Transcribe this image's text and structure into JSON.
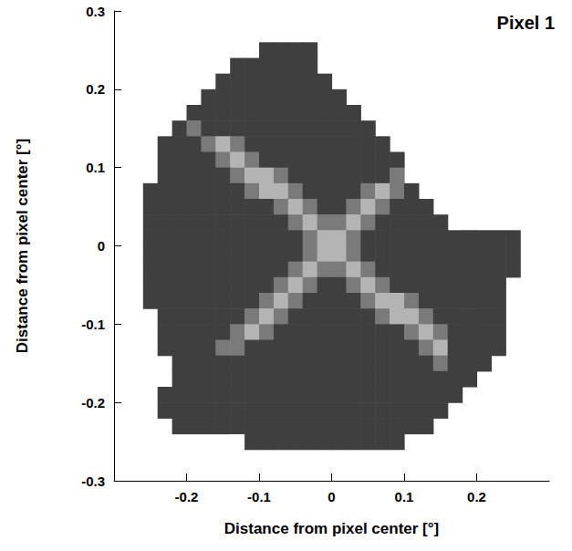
{
  "chart_data": {
    "type": "heatmap",
    "title": "Pixel 1",
    "x_label": "Distance from pixel center [°]",
    "y_label": "Distance from pixel center [°]",
    "xlim": [
      -0.3,
      0.3
    ],
    "ylim": [
      -0.3,
      0.3
    ],
    "xticks": [
      -0.2,
      -0.1,
      0,
      0.1,
      0.2
    ],
    "yticks": [
      -0.3,
      -0.2,
      -0.1,
      0,
      0.1,
      0.2,
      0.3
    ],
    "grid": false,
    "colors": [
      "#3f3f3f",
      "#7a7a7a",
      "#b4b4b4"
    ],
    "x_edges": [
      -0.3,
      -0.28,
      -0.26,
      -0.24,
      -0.22,
      -0.2,
      -0.18,
      -0.16,
      -0.14,
      -0.12,
      -0.1,
      -0.08,
      -0.06,
      -0.04,
      -0.02,
      0,
      0.02,
      0.04,
      0.06,
      0.08,
      0.1,
      0.12,
      0.14,
      0.16,
      0.18,
      0.2,
      0.22,
      0.24,
      0.26,
      0.28,
      0.3
    ],
    "y_edges": [
      0.3,
      0.28,
      0.26,
      0.24,
      0.22,
      0.2,
      0.18,
      0.16,
      0.14,
      0.12,
      0.1,
      0.08,
      0.06,
      0.04,
      0.02,
      0,
      -0.02,
      -0.04,
      -0.06,
      -0.08,
      -0.1,
      -0.12,
      -0.14,
      -0.16,
      -0.18,
      -0.2,
      -0.22,
      -0.24,
      -0.26,
      -0.28,
      -0.3
    ],
    "cells": [
      [
        0,
        0,
        0,
        0,
        0,
        0,
        0,
        0,
        0,
        0,
        0,
        0,
        0,
        0,
        0,
        0,
        0,
        0,
        0,
        0,
        0,
        0,
        0,
        0,
        0,
        0,
        0,
        0,
        0,
        0
      ],
      [
        0,
        0,
        0,
        0,
        0,
        0,
        0,
        0,
        0,
        0,
        0,
        0,
        0,
        0,
        0,
        0,
        0,
        0,
        0,
        0,
        0,
        0,
        0,
        0,
        0,
        0,
        0,
        0,
        0,
        0
      ],
      [
        0,
        0,
        0,
        0,
        0,
        0,
        0,
        0,
        0,
        0,
        1,
        1,
        1,
        1,
        0,
        0,
        0,
        0,
        0,
        0,
        0,
        0,
        0,
        0,
        0,
        0,
        0,
        0,
        0,
        0
      ],
      [
        0,
        0,
        0,
        0,
        0,
        0,
        0,
        0,
        1,
        1,
        1,
        1,
        1,
        1,
        0,
        0,
        0,
        0,
        0,
        0,
        0,
        0,
        0,
        0,
        0,
        0,
        0,
        0,
        0,
        0
      ],
      [
        0,
        0,
        0,
        0,
        0,
        0,
        0,
        1,
        1,
        1,
        1,
        1,
        1,
        1,
        1,
        0,
        0,
        0,
        0,
        0,
        0,
        0,
        0,
        0,
        0,
        0,
        0,
        0,
        0,
        0
      ],
      [
        0,
        0,
        0,
        0,
        0,
        0,
        1,
        1,
        1,
        1,
        1,
        1,
        1,
        1,
        1,
        1,
        0,
        0,
        0,
        0,
        0,
        0,
        0,
        0,
        0,
        0,
        0,
        0,
        0,
        0
      ],
      [
        0,
        0,
        0,
        0,
        0,
        1,
        1,
        1,
        1,
        1,
        1,
        1,
        1,
        1,
        1,
        1,
        1,
        0,
        0,
        0,
        0,
        0,
        0,
        0,
        0,
        0,
        0,
        0,
        0,
        0
      ],
      [
        0,
        0,
        0,
        0,
        1,
        2,
        1,
        1,
        1,
        1,
        1,
        1,
        1,
        1,
        1,
        1,
        1,
        1,
        0,
        0,
        0,
        0,
        0,
        0,
        0,
        0,
        0,
        0,
        0,
        0
      ],
      [
        0,
        0,
        0,
        1,
        1,
        1,
        2,
        3,
        2,
        1,
        1,
        1,
        1,
        1,
        1,
        1,
        1,
        1,
        1,
        0,
        0,
        0,
        0,
        0,
        0,
        0,
        0,
        0,
        0,
        0
      ],
      [
        0,
        0,
        0,
        1,
        1,
        1,
        1,
        2,
        3,
        2,
        1,
        1,
        1,
        1,
        1,
        1,
        1,
        1,
        1,
        1,
        0,
        0,
        0,
        0,
        0,
        0,
        0,
        0,
        0,
        0
      ],
      [
        0,
        0,
        0,
        1,
        1,
        1,
        1,
        1,
        2,
        3,
        3,
        2,
        1,
        1,
        1,
        1,
        1,
        1,
        1,
        2,
        0,
        0,
        0,
        0,
        0,
        0,
        0,
        0,
        0,
        0
      ],
      [
        0,
        0,
        1,
        1,
        1,
        1,
        1,
        1,
        1,
        2,
        3,
        3,
        2,
        1,
        1,
        1,
        1,
        2,
        3,
        2,
        1,
        0,
        0,
        0,
        0,
        0,
        0,
        0,
        0,
        0
      ],
      [
        0,
        0,
        1,
        1,
        1,
        1,
        1,
        1,
        1,
        1,
        1,
        2,
        3,
        2,
        1,
        1,
        2,
        3,
        2,
        1,
        1,
        1,
        0,
        0,
        0,
        0,
        0,
        0,
        0,
        0
      ],
      [
        0,
        0,
        1,
        1,
        1,
        1,
        1,
        1,
        1,
        1,
        1,
        1,
        2,
        3,
        2,
        2,
        3,
        2,
        1,
        1,
        1,
        1,
        1,
        0,
        0,
        0,
        0,
        0,
        0,
        0
      ],
      [
        0,
        0,
        1,
        1,
        1,
        1,
        1,
        1,
        1,
        1,
        1,
        1,
        1,
        2,
        3,
        3,
        2,
        1,
        1,
        1,
        1,
        1,
        1,
        1,
        1,
        1,
        1,
        1,
        0,
        0
      ],
      [
        0,
        0,
        1,
        1,
        1,
        1,
        1,
        1,
        1,
        1,
        1,
        1,
        1,
        2,
        3,
        3,
        2,
        1,
        1,
        1,
        1,
        1,
        1,
        1,
        1,
        1,
        1,
        1,
        0,
        0
      ],
      [
        0,
        0,
        1,
        1,
        1,
        1,
        1,
        1,
        1,
        1,
        1,
        1,
        2,
        3,
        2,
        2,
        3,
        2,
        1,
        1,
        1,
        1,
        1,
        1,
        1,
        1,
        1,
        1,
        0,
        0
      ],
      [
        0,
        0,
        1,
        1,
        1,
        1,
        1,
        1,
        1,
        1,
        1,
        2,
        3,
        2,
        1,
        1,
        2,
        3,
        2,
        1,
        1,
        1,
        1,
        1,
        1,
        1,
        1,
        0,
        0,
        0
      ],
      [
        0,
        0,
        1,
        1,
        1,
        1,
        1,
        1,
        1,
        1,
        2,
        3,
        2,
        1,
        1,
        1,
        1,
        2,
        3,
        3,
        2,
        1,
        1,
        1,
        1,
        1,
        1,
        0,
        0,
        0
      ],
      [
        0,
        0,
        0,
        1,
        1,
        1,
        1,
        1,
        1,
        2,
        3,
        2,
        1,
        1,
        1,
        1,
        1,
        1,
        2,
        3,
        3,
        2,
        1,
        1,
        1,
        1,
        1,
        0,
        0,
        0
      ],
      [
        0,
        0,
        0,
        1,
        1,
        1,
        1,
        1,
        2,
        3,
        2,
        1,
        1,
        1,
        1,
        1,
        1,
        1,
        1,
        1,
        2,
        3,
        2,
        1,
        1,
        1,
        1,
        0,
        0,
        0
      ],
      [
        0,
        0,
        0,
        1,
        1,
        1,
        1,
        2,
        2,
        1,
        1,
        1,
        1,
        1,
        1,
        1,
        1,
        1,
        1,
        1,
        1,
        2,
        3,
        1,
        1,
        1,
        1,
        0,
        0,
        0
      ],
      [
        0,
        0,
        0,
        0,
        1,
        1,
        1,
        1,
        1,
        1,
        1,
        1,
        1,
        1,
        1,
        1,
        1,
        1,
        1,
        1,
        1,
        1,
        2,
        1,
        1,
        1,
        0,
        0,
        0,
        0
      ],
      [
        0,
        0,
        0,
        0,
        1,
        1,
        1,
        1,
        1,
        1,
        1,
        1,
        1,
        1,
        1,
        1,
        1,
        1,
        1,
        1,
        1,
        1,
        1,
        1,
        1,
        0,
        0,
        0,
        0,
        0
      ],
      [
        0,
        0,
        0,
        1,
        1,
        1,
        1,
        1,
        1,
        1,
        1,
        1,
        1,
        1,
        1,
        1,
        1,
        1,
        1,
        1,
        1,
        1,
        1,
        1,
        0,
        0,
        0,
        0,
        0,
        0
      ],
      [
        0,
        0,
        0,
        1,
        1,
        1,
        1,
        1,
        1,
        1,
        1,
        1,
        1,
        1,
        1,
        1,
        1,
        1,
        1,
        1,
        1,
        1,
        1,
        0,
        0,
        0,
        0,
        0,
        0,
        0
      ],
      [
        0,
        0,
        0,
        0,
        1,
        1,
        1,
        1,
        1,
        1,
        1,
        1,
        1,
        1,
        1,
        1,
        1,
        1,
        1,
        1,
        1,
        1,
        0,
        0,
        0,
        0,
        0,
        0,
        0,
        0
      ],
      [
        0,
        0,
        0,
        0,
        0,
        0,
        0,
        0,
        0,
        1,
        1,
        1,
        1,
        1,
        1,
        1,
        1,
        1,
        1,
        1,
        0,
        0,
        0,
        0,
        0,
        0,
        0,
        0,
        0,
        0
      ],
      [
        0,
        0,
        0,
        0,
        0,
        0,
        0,
        0,
        0,
        0,
        0,
        0,
        0,
        0,
        0,
        0,
        0,
        0,
        0,
        0,
        0,
        0,
        0,
        0,
        0,
        0,
        0,
        0,
        0,
        0
      ],
      [
        0,
        0,
        0,
        0,
        0,
        0,
        0,
        0,
        0,
        0,
        0,
        0,
        0,
        0,
        0,
        0,
        0,
        0,
        0,
        0,
        0,
        0,
        0,
        0,
        0,
        0,
        0,
        0,
        0,
        0
      ]
    ]
  }
}
